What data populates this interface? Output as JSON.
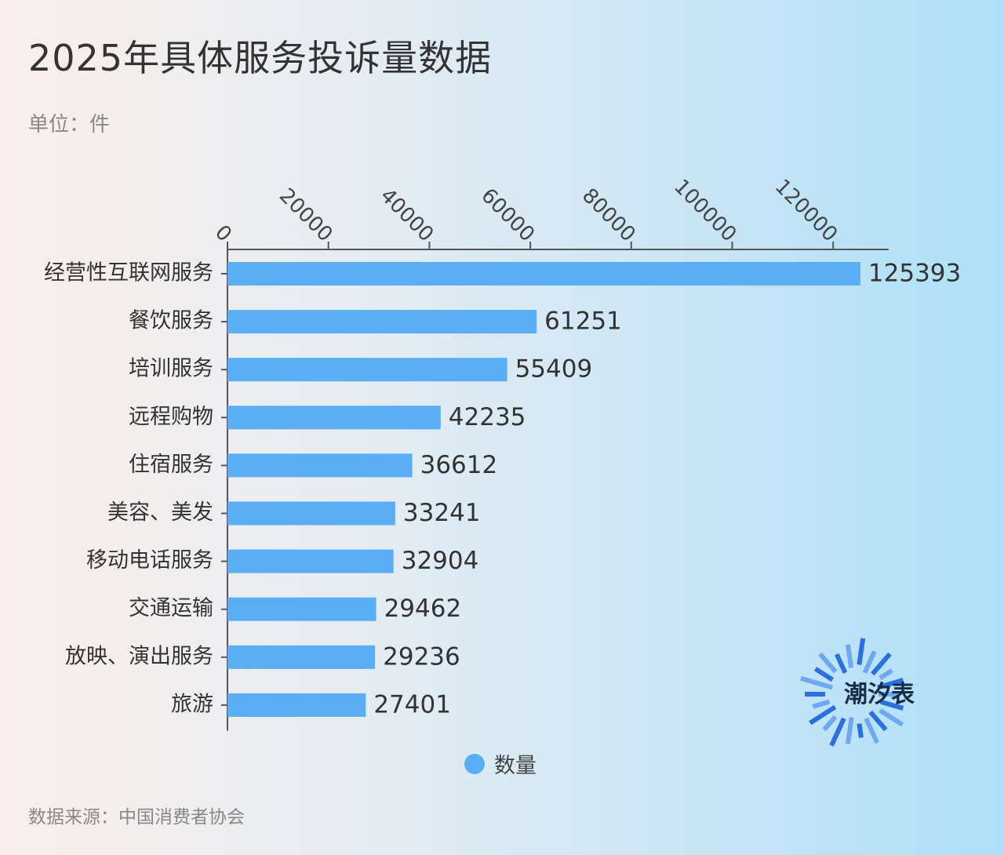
{
  "header": {
    "title": "2025年具体服务投诉量数据",
    "unit": "单位：件"
  },
  "legend": {
    "label": "数量"
  },
  "footer": {
    "source": "数据来源：中国消费者协会"
  },
  "logo": {
    "text": "潮汐表"
  },
  "colors": {
    "bar": "#5aaef4",
    "axis": "#555555",
    "label": "#333333"
  },
  "chart_data": {
    "type": "bar",
    "orientation": "horizontal",
    "categories": [
      "经营性互联网服务",
      "餐饮服务",
      "培训服务",
      "远程购物",
      "住宿服务",
      "美容、美发",
      "移动电话服务",
      "交通运输",
      "放映、演出服务",
      "旅游"
    ],
    "series": [
      {
        "name": "数量",
        "values": [
          125393,
          61251,
          55409,
          42235,
          36612,
          33241,
          32904,
          29462,
          29236,
          27401
        ]
      }
    ],
    "xticks": [
      "0",
      "20000",
      "40000",
      "60000",
      "80000",
      "100000",
      "120000"
    ],
    "xlim": [
      0,
      131000
    ],
    "title": "2025年具体服务投诉量数据",
    "ylabel": "",
    "xlabel": "",
    "legend_position": "bottom",
    "grid": false
  }
}
